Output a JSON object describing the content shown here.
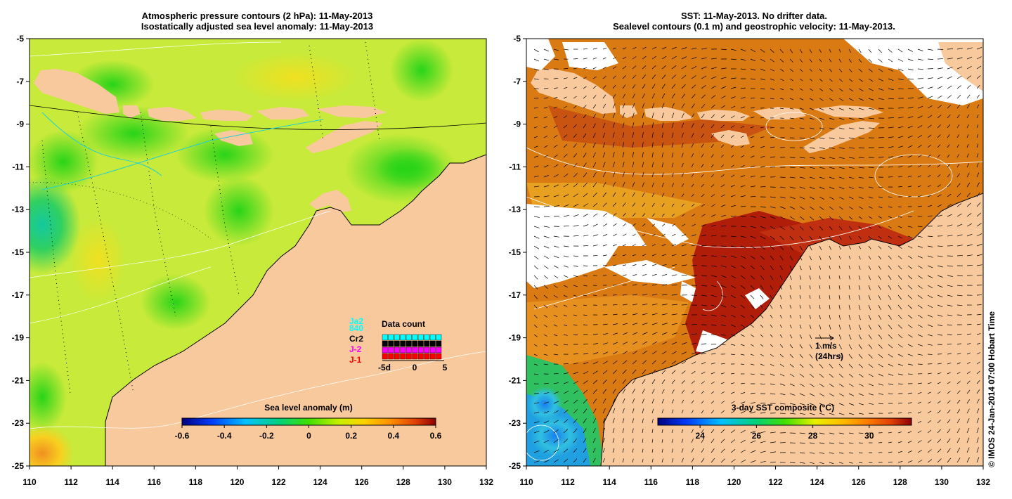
{
  "left_panel": {
    "title_line1": "Atmospheric pressure contours (2 hPa): 11-May-2013",
    "title_line2": "Isostatically adjusted sea level anomaly: 11-May-2013",
    "x_ticks": [
      "110",
      "112",
      "114",
      "116",
      "118",
      "120",
      "122",
      "124",
      "126",
      "128",
      "130",
      "132"
    ],
    "y_ticks": [
      "-5",
      "-7",
      "-9",
      "-11",
      "-13",
      "-15",
      "-17",
      "-19",
      "-21",
      "-23",
      "-25"
    ],
    "colorbar": {
      "title": "Sea level anomaly (m)",
      "ticks": [
        "-0.6",
        "-0.4",
        "-0.2",
        "0",
        "0.2",
        "0.4",
        "0.6"
      ],
      "range": [
        -0.6,
        0.6
      ]
    },
    "legend": {
      "satellites": [
        {
          "label": "840",
          "color": "#00ffff"
        },
        {
          "label": "Cr2",
          "color": "#000000"
        },
        {
          "label": "J-2",
          "color": "#ff00ff"
        },
        {
          "label": "J-1",
          "color": "#ff0000"
        }
      ],
      "sat_top_label": "Ja2",
      "count_title": "Data count",
      "count_ticks": [
        "-5d",
        "0",
        "5"
      ],
      "counts": [
        3,
        4,
        3,
        3,
        3,
        3,
        3,
        3,
        3,
        3
      ]
    }
  },
  "right_panel": {
    "title_line1": "SST: 11-May-2013. No drifter data.",
    "title_line2": "Sealevel contours (0.1 m) and geostrophic velocity: 11-May-2013.",
    "x_ticks": [
      "110",
      "112",
      "114",
      "116",
      "118",
      "120",
      "122",
      "124",
      "126",
      "128",
      "130",
      "132"
    ],
    "y_ticks": [
      "-5",
      "-7",
      "-9",
      "-11",
      "-13",
      "-15",
      "-17",
      "-19",
      "-21",
      "-23",
      "-25"
    ],
    "colorbar": {
      "title": "3-day SST composite (°C)",
      "ticks": [
        "24",
        "26",
        "28",
        "30"
      ],
      "range": [
        22.5,
        31.5
      ]
    },
    "velocity_key": {
      "line1": "1 m/s",
      "line2": "(24hrs)"
    }
  },
  "credit": "© IMOS 24-Jan-2014 07:00 Hobart Time",
  "colors": {
    "land": "#f9c99e",
    "sla_base": "#c8ea3a",
    "sst_base": "#d97a12",
    "sst_hot": "#b01e0a"
  }
}
